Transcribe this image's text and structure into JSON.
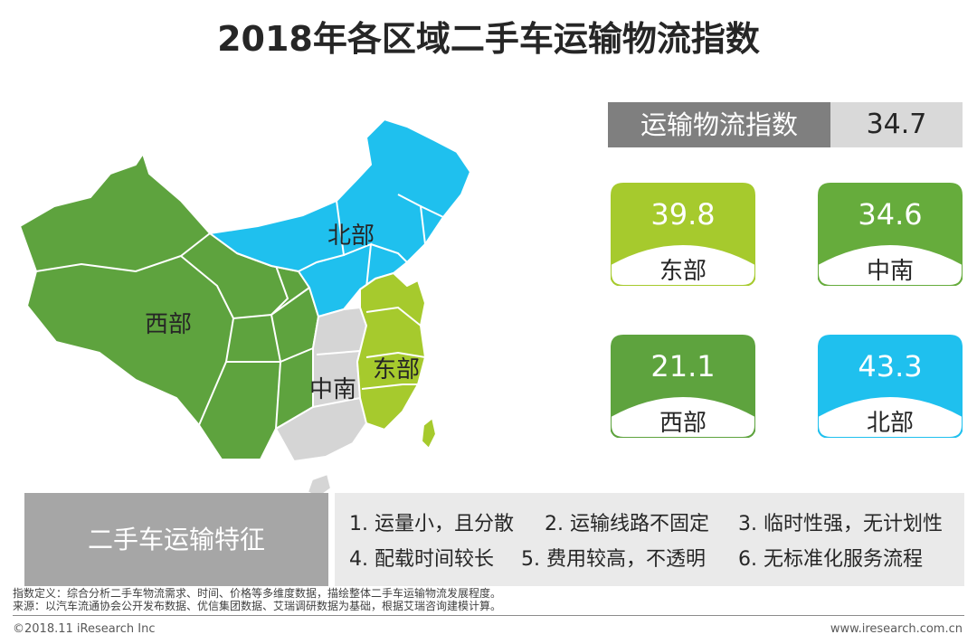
{
  "title": "2018年各区域二手车运输物流指数",
  "overall": {
    "label": "运输物流指数",
    "value": "34.7"
  },
  "chart_data": {
    "type": "map",
    "title": "2018年各区域二手车运输物流指数",
    "regions": [
      {
        "name": "东部",
        "value": 39.8,
        "color": "#a6ca2d"
      },
      {
        "name": "中南",
        "value": 34.6,
        "color": "#66ac3c"
      },
      {
        "name": "西部",
        "value": 21.1,
        "color": "#5ea33e"
      },
      {
        "name": "北部",
        "value": 43.3,
        "color": "#1fc0ee"
      }
    ],
    "map_colors": {
      "west": "#5ea33e",
      "north": "#1fc0ee",
      "central_south": "#d5d5d5",
      "east": "#a6ca2d"
    },
    "overall_label": "运输物流指数",
    "overall_value": 34.7
  },
  "map_labels": {
    "north": "北部",
    "west": "西部",
    "central": "中南",
    "east": "东部"
  },
  "cards": [
    {
      "value": "39.8",
      "name": "东部",
      "color": "#a6ca2d"
    },
    {
      "value": "34.6",
      "name": "中南",
      "color": "#66ac3c"
    },
    {
      "value": "21.1",
      "name": "西部",
      "color": "#5ea33e"
    },
    {
      "value": "43.3",
      "name": "北部",
      "color": "#1fc0ee"
    }
  ],
  "features": {
    "label": "二手车运输特征",
    "items": [
      "1. 运量小，且分散",
      "2. 运输线路不固定",
      "3. 临时性强，无计划性",
      "4. 配载时间较长",
      "5. 费用较高，不透明",
      "6. 无标准化服务流程"
    ]
  },
  "notes": {
    "definition": "指数定义：综合分析二手车物流需求、时间、价格等多维度数据，描绘整体二手车运输物流发展程度。",
    "source": "来源：以汽车流通协会公开发布数据、优信集团数据、艾瑞调研数据为基础，根据艾瑞咨询建模计算。"
  },
  "footer": {
    "copyright": "©2018.11 iResearch Inc",
    "website": "www.iresearch.com.cn"
  }
}
